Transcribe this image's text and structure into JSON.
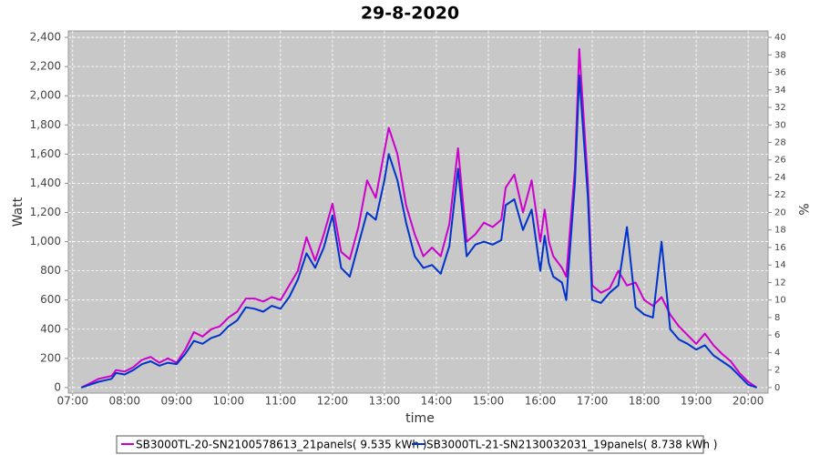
{
  "chart_data": {
    "type": "line",
    "title": "29-8-2020",
    "x_label": "time",
    "y_label": "Watt",
    "y2_label": "%",
    "x": [
      "07:10",
      "07:20",
      "07:30",
      "07:45",
      "07:50",
      "08:00",
      "08:10",
      "08:20",
      "08:30",
      "08:40",
      "08:50",
      "09:00",
      "09:10",
      "09:20",
      "09:30",
      "09:40",
      "09:50",
      "10:00",
      "10:10",
      "10:20",
      "10:30",
      "10:40",
      "10:50",
      "11:00",
      "11:10",
      "11:20",
      "11:30",
      "11:40",
      "11:50",
      "12:00",
      "12:10",
      "12:20",
      "12:30",
      "12:40",
      "12:50",
      "13:00",
      "13:05",
      "13:15",
      "13:25",
      "13:35",
      "13:45",
      "13:55",
      "14:05",
      "14:15",
      "14:25",
      "14:35",
      "14:45",
      "14:55",
      "15:05",
      "15:15",
      "15:20",
      "15:30",
      "15:40",
      "15:50",
      "16:00",
      "16:05",
      "16:10",
      "16:15",
      "16:25",
      "16:30",
      "16:40",
      "16:45",
      "16:55",
      "17:00",
      "17:10",
      "17:20",
      "17:30",
      "17:40",
      "17:50",
      "18:00",
      "18:10",
      "18:20",
      "18:30",
      "18:40",
      "18:50",
      "19:00",
      "19:10",
      "19:20",
      "19:30",
      "19:40",
      "19:50",
      "20:00",
      "20:10"
    ],
    "series": [
      {
        "name": "SB3000TL-20-SN2100578613_21panels( 9.535 kWh )",
        "color": "#cc00cc",
        "values": [
          0,
          30,
          60,
          80,
          120,
          110,
          140,
          190,
          210,
          170,
          200,
          170,
          260,
          380,
          350,
          400,
          420,
          480,
          520,
          610,
          610,
          590,
          620,
          600,
          700,
          800,
          1030,
          870,
          1050,
          1260,
          930,
          880,
          1100,
          1420,
          1300,
          1620,
          1780,
          1600,
          1250,
          1050,
          900,
          960,
          900,
          1120,
          1640,
          1000,
          1050,
          1130,
          1100,
          1150,
          1370,
          1460,
          1200,
          1420,
          1000,
          1220,
          1000,
          900,
          820,
          760,
          1500,
          2320,
          1400,
          700,
          650,
          680,
          800,
          700,
          720,
          600,
          560,
          620,
          500,
          420,
          360,
          300,
          370,
          290,
          230,
          180,
          100,
          40,
          0
        ]
      },
      {
        "name": "SB3000TL-21-SN2130032031_19panels( 8.738 kWh )",
        "color": "#0033cc",
        "values": [
          0,
          20,
          40,
          60,
          100,
          90,
          120,
          160,
          180,
          150,
          170,
          160,
          230,
          320,
          300,
          340,
          360,
          420,
          460,
          550,
          540,
          520,
          560,
          540,
          620,
          740,
          920,
          820,
          960,
          1180,
          820,
          760,
          980,
          1200,
          1150,
          1420,
          1600,
          1420,
          1130,
          900,
          820,
          840,
          780,
          970,
          1500,
          900,
          980,
          1000,
          980,
          1010,
          1250,
          1290,
          1080,
          1220,
          800,
          1040,
          850,
          760,
          720,
          600,
          1400,
          2140,
          1300,
          600,
          580,
          650,
          700,
          1100,
          550,
          500,
          480,
          1000,
          400,
          330,
          300,
          260,
          290,
          220,
          180,
          140,
          80,
          20,
          0
        ]
      }
    ],
    "xlim": [
      "06:55",
      "20:23"
    ],
    "xticks": [
      "07:00",
      "08:00",
      "09:00",
      "10:00",
      "11:00",
      "12:00",
      "13:00",
      "14:00",
      "15:00",
      "16:00",
      "17:00",
      "18:00",
      "19:00",
      "20:00"
    ],
    "ylim": [
      -38,
      2444
    ],
    "yticks": [
      0,
      200,
      400,
      600,
      800,
      {
        "value": 1000,
        "label": "1,000"
      },
      {
        "value": 1200,
        "label": "1,200"
      },
      {
        "value": 1400,
        "label": "1,400"
      },
      {
        "value": 1600,
        "label": "1,600"
      },
      {
        "value": 1800,
        "label": "1,800"
      },
      {
        "value": 2000,
        "label": "2,000"
      },
      {
        "value": 2200,
        "label": "2,200"
      },
      {
        "value": 2400,
        "label": "2,400"
      }
    ],
    "y2lim": [
      -0.63,
      40.73
    ],
    "y2ticks": [
      0,
      2,
      4,
      6,
      8,
      10,
      12,
      14,
      16,
      18,
      20,
      22,
      24,
      26,
      28,
      30,
      32,
      34,
      36,
      38,
      40
    ],
    "grid": true,
    "legend": "bottom"
  }
}
